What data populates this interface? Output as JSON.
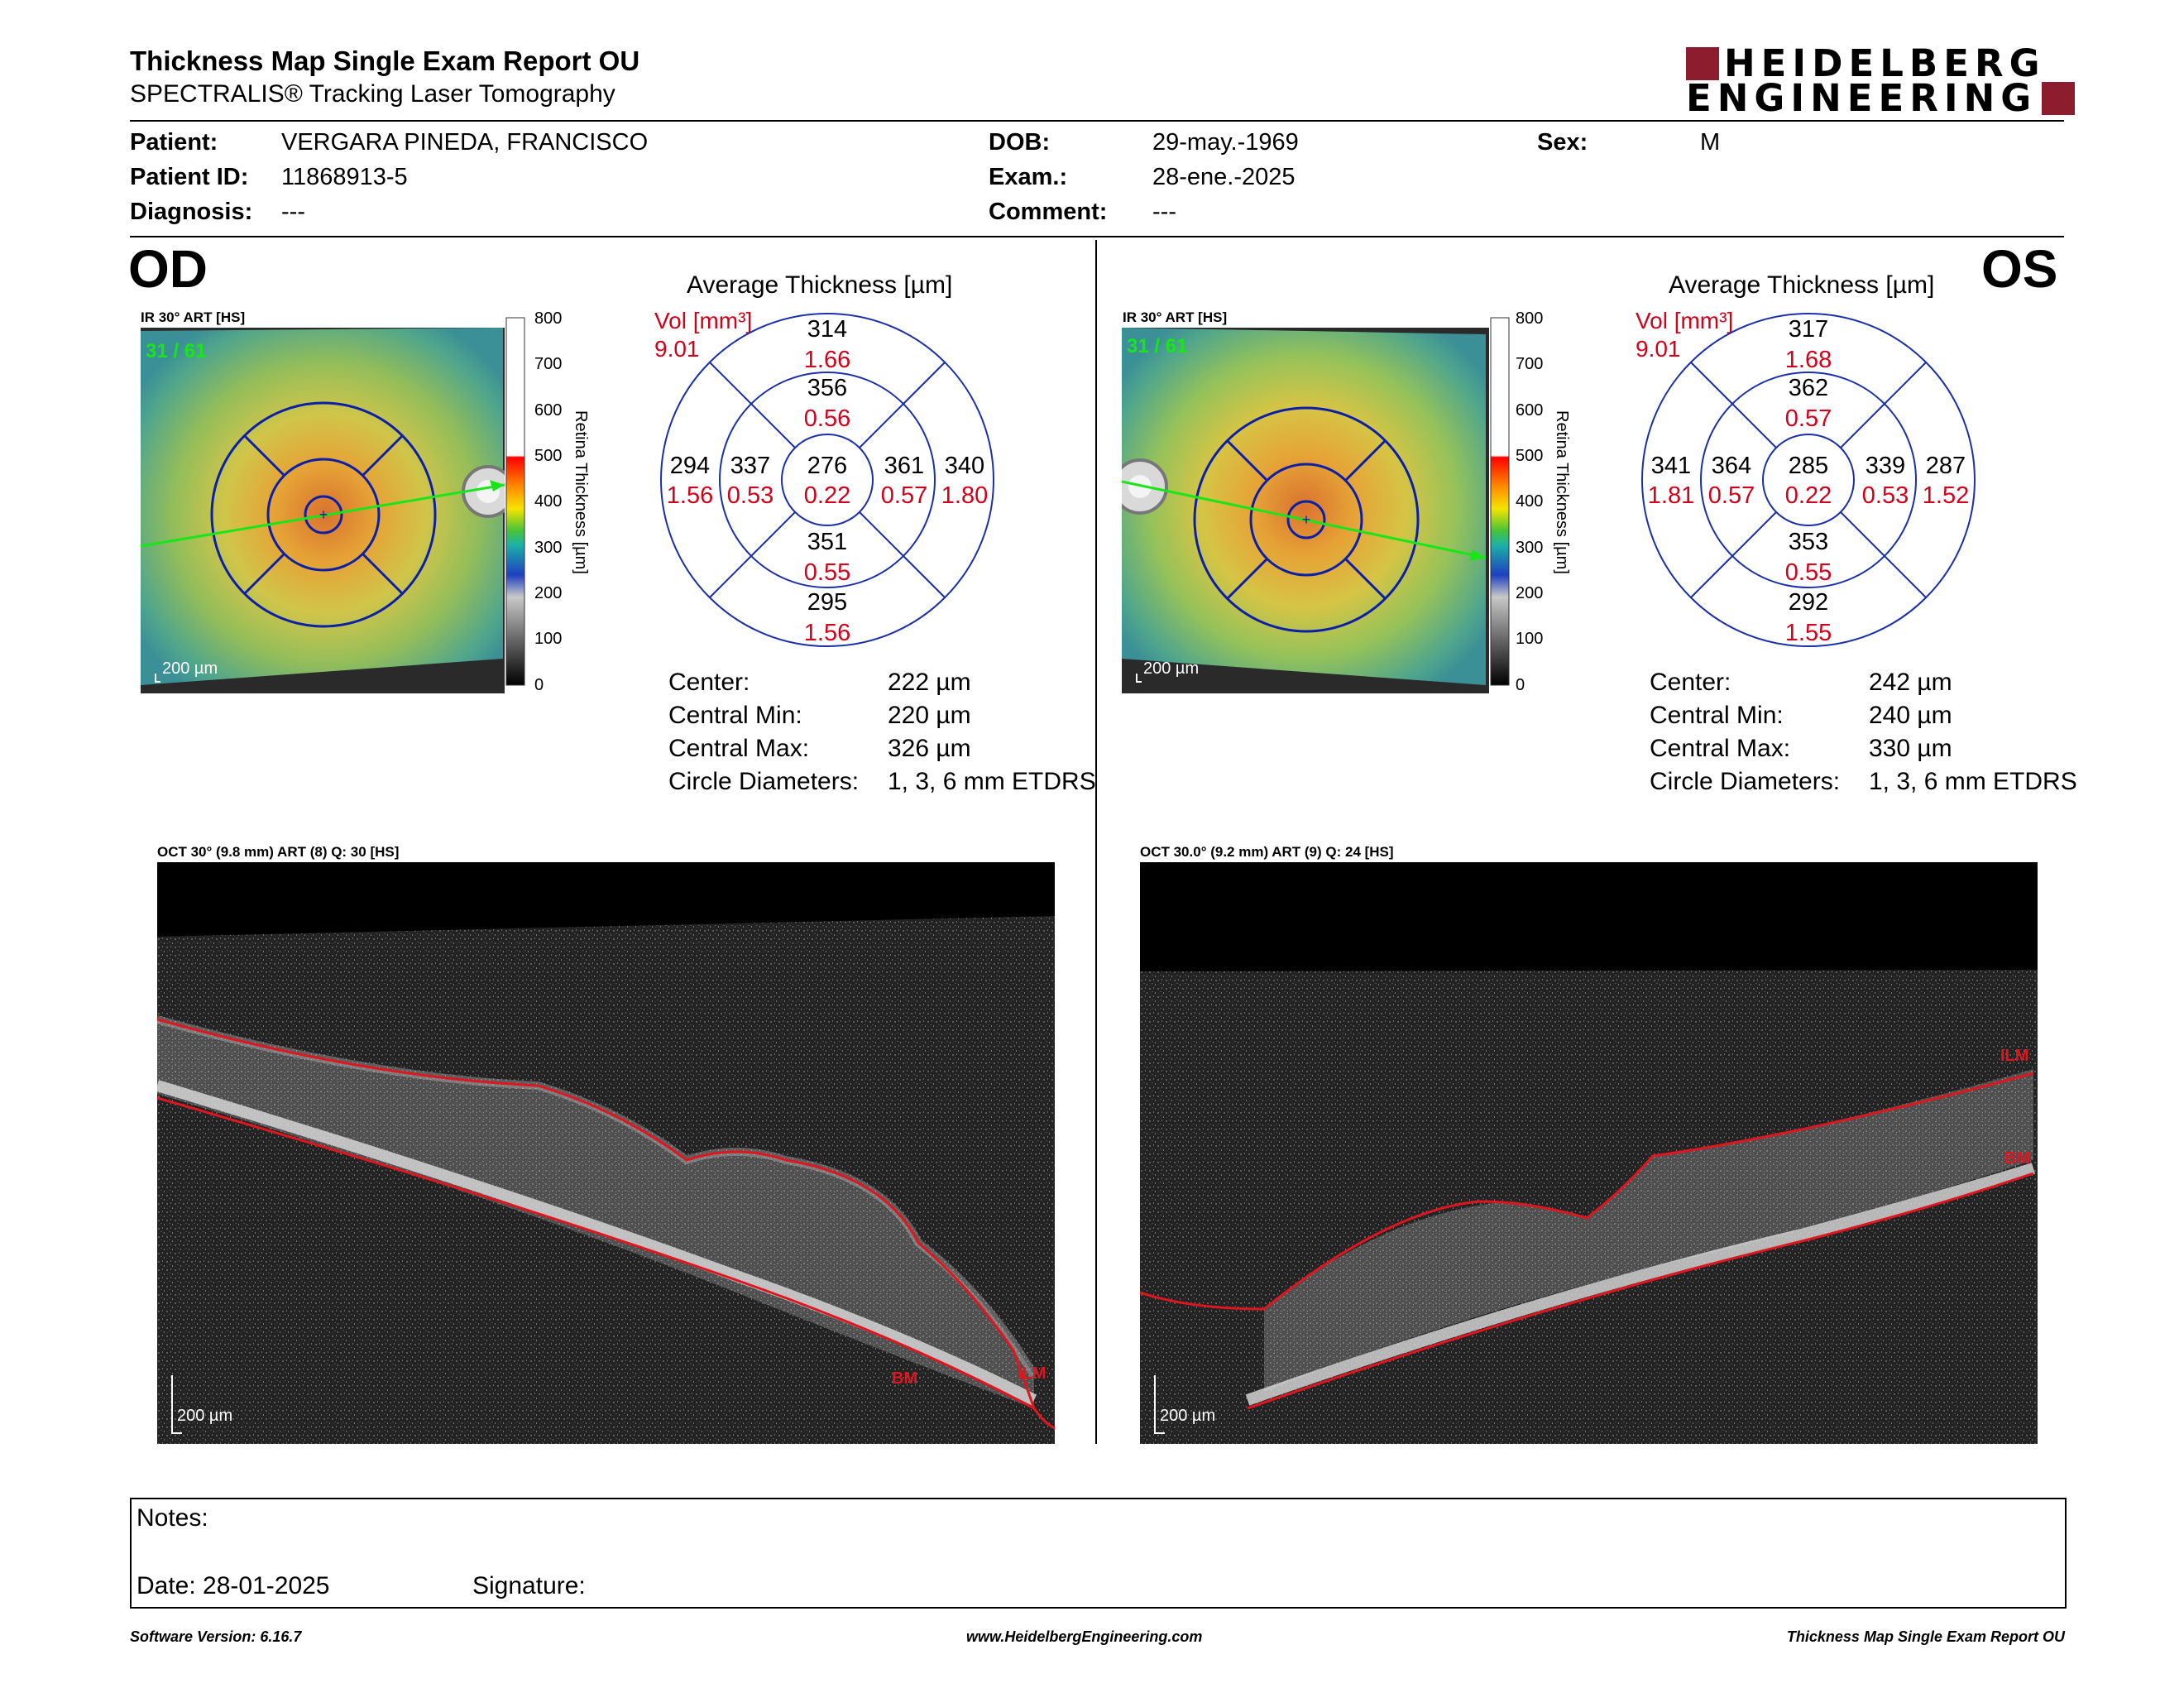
{
  "header": {
    "title": "Thickness Map Single Exam Report OU",
    "subtitle": "SPECTRALIS® Tracking Laser Tomography",
    "logo_line1": "HEIDELBERG",
    "logo_line2": "ENGINEERING",
    "brand_color": "#8c1c2e"
  },
  "patient": {
    "patient_label": "Patient:",
    "patient_value": "VERGARA PINEDA, FRANCISCO",
    "id_label": "Patient ID:",
    "id_value": "11868913-5",
    "diagnosis_label": "Diagnosis:",
    "diagnosis_value": "---",
    "dob_label": "DOB:",
    "dob_value": "29-may.-1969",
    "exam_label": "Exam.:",
    "exam_value": "28-ene.-2025",
    "comment_label": "Comment:",
    "comment_value": "---",
    "sex_label": "Sex:",
    "sex_value": "M"
  },
  "colorbar": {
    "ticks": [
      "800",
      "700",
      "600",
      "500",
      "400",
      "300",
      "200",
      "100",
      "0"
    ],
    "label": "Retina Thickness [µm]"
  },
  "od": {
    "eye_label": "OD",
    "ir_label": "IR 30° ART [HS]",
    "frame_label": "31 / 61",
    "scale_label": "200 µm",
    "avg_title": "Average Thickness [µm]",
    "vol_label": "Vol [mm³]",
    "vol_value": "9.01",
    "sectors": {
      "outer_top": {
        "t": "314",
        "v": "1.66"
      },
      "inner_top": {
        "t": "356",
        "v": "0.56"
      },
      "outer_left": {
        "t": "294",
        "v": "1.56"
      },
      "inner_left": {
        "t": "337",
        "v": "0.53"
      },
      "center": {
        "t": "276",
        "v": "0.22"
      },
      "inner_right": {
        "t": "361",
        "v": "0.57"
      },
      "outer_right": {
        "t": "340",
        "v": "1.80"
      },
      "inner_bottom": {
        "t": "351",
        "v": "0.55"
      },
      "outer_bottom": {
        "t": "295",
        "v": "1.56"
      }
    },
    "stats": [
      {
        "label": "Center:",
        "value": "222 µm"
      },
      {
        "label": "Central Min:",
        "value": "220 µm"
      },
      {
        "label": "Central Max:",
        "value": "326 µm"
      },
      {
        "label": "Circle Diameters:",
        "value": "1, 3, 6 mm ETDRS"
      }
    ],
    "oct_label": "OCT 30° (9.8 mm) ART (8) Q: 30 [HS]",
    "oct_scale": "200 µm",
    "bm_label": "BM",
    "ilm_label": "ILM"
  },
  "os": {
    "eye_label": "OS",
    "ir_label": "IR 30° ART [HS]",
    "frame_label": "31 / 61",
    "scale_label": "200 µm",
    "avg_title": "Average Thickness [µm]",
    "vol_label": "Vol [mm³]",
    "vol_value": "9.01",
    "sectors": {
      "outer_top": {
        "t": "317",
        "v": "1.68"
      },
      "inner_top": {
        "t": "362",
        "v": "0.57"
      },
      "outer_left": {
        "t": "341",
        "v": "1.81"
      },
      "inner_left": {
        "t": "364",
        "v": "0.57"
      },
      "center": {
        "t": "285",
        "v": "0.22"
      },
      "inner_right": {
        "t": "339",
        "v": "0.53"
      },
      "outer_right": {
        "t": "287",
        "v": "1.52"
      },
      "inner_bottom": {
        "t": "353",
        "v": "0.55"
      },
      "outer_bottom": {
        "t": "292",
        "v": "1.55"
      }
    },
    "stats": [
      {
        "label": "Center:",
        "value": "242 µm"
      },
      {
        "label": "Central Min:",
        "value": "240 µm"
      },
      {
        "label": "Central Max:",
        "value": "330 µm"
      },
      {
        "label": "Circle Diameters:",
        "value": "1, 3, 6 mm ETDRS"
      }
    ],
    "oct_label": "OCT 30.0° (9.2 mm) ART (9) Q: 24 [HS]",
    "oct_scale": "200 µm",
    "ilm_label": "ILM",
    "bm_label": "BM"
  },
  "notes": {
    "notes_label": "Notes:",
    "date_label": "Date: 28-01-2025",
    "signature_label": "Signature:"
  },
  "footer": {
    "software": "Software Version: 6.16.7",
    "website": "www.HeidelbergEngineering.com",
    "report": "Thickness Map Single Exam Report OU"
  }
}
